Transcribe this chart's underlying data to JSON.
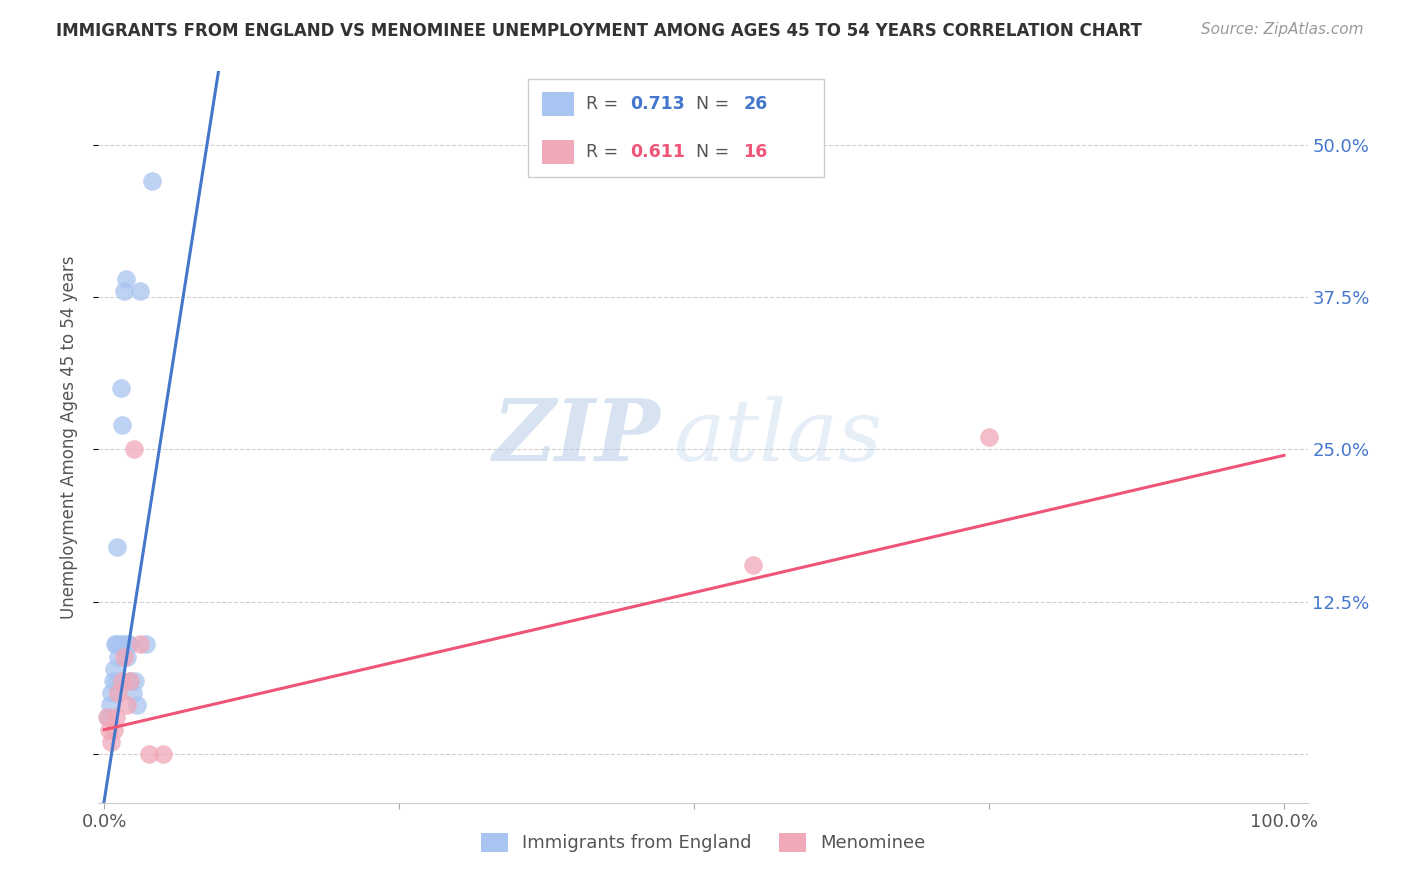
{
  "title": "IMMIGRANTS FROM ENGLAND VS MENOMINEE UNEMPLOYMENT AMONG AGES 45 TO 54 YEARS CORRELATION CHART",
  "source": "Source: ZipAtlas.com",
  "ylabel": "Unemployment Among Ages 45 to 54 years",
  "yticks": [
    0.0,
    0.125,
    0.25,
    0.375,
    0.5
  ],
  "ytick_labels_right": [
    "",
    "12.5%",
    "25.0%",
    "37.5%",
    "50.0%"
  ],
  "blue_R": 0.713,
  "blue_N": 26,
  "pink_R": 0.611,
  "pink_N": 16,
  "blue_color": "#a8c4f0",
  "pink_color": "#f0a8b8",
  "blue_line_color": "#4477cc",
  "pink_line_color": "#ee5577",
  "right_axis_color": "#4477cc",
  "background_color": "#ffffff",
  "blue_scatter_x": [
    0.003,
    0.005,
    0.006,
    0.007,
    0.008,
    0.009,
    0.01,
    0.01,
    0.011,
    0.012,
    0.013,
    0.014,
    0.015,
    0.016,
    0.017,
    0.018,
    0.019,
    0.02,
    0.021,
    0.022,
    0.024,
    0.026,
    0.028,
    0.03,
    0.035,
    0.04
  ],
  "blue_scatter_y": [
    0.03,
    0.04,
    0.05,
    0.06,
    0.07,
    0.09,
    0.06,
    0.09,
    0.17,
    0.08,
    0.09,
    0.3,
    0.27,
    0.09,
    0.38,
    0.39,
    0.08,
    0.09,
    0.09,
    0.06,
    0.05,
    0.06,
    0.04,
    0.38,
    0.09,
    0.47
  ],
  "pink_scatter_x": [
    0.002,
    0.004,
    0.006,
    0.008,
    0.01,
    0.012,
    0.015,
    0.017,
    0.019,
    0.022,
    0.025,
    0.03,
    0.038,
    0.05,
    0.55,
    0.75
  ],
  "pink_scatter_y": [
    0.03,
    0.02,
    0.01,
    0.02,
    0.03,
    0.05,
    0.06,
    0.08,
    0.04,
    0.06,
    0.25,
    0.09,
    0.0,
    0.0,
    0.155,
    0.26
  ],
  "blue_line_x": [
    -0.002,
    0.1
  ],
  "blue_line_y": [
    -0.05,
    0.58
  ],
  "pink_line_x": [
    0.0,
    1.0
  ],
  "pink_line_y": [
    0.02,
    0.245
  ],
  "xlim": [
    -0.005,
    1.02
  ],
  "ylim": [
    -0.04,
    0.56
  ],
  "watermark_zip": "ZIP",
  "watermark_atlas": "atlas"
}
